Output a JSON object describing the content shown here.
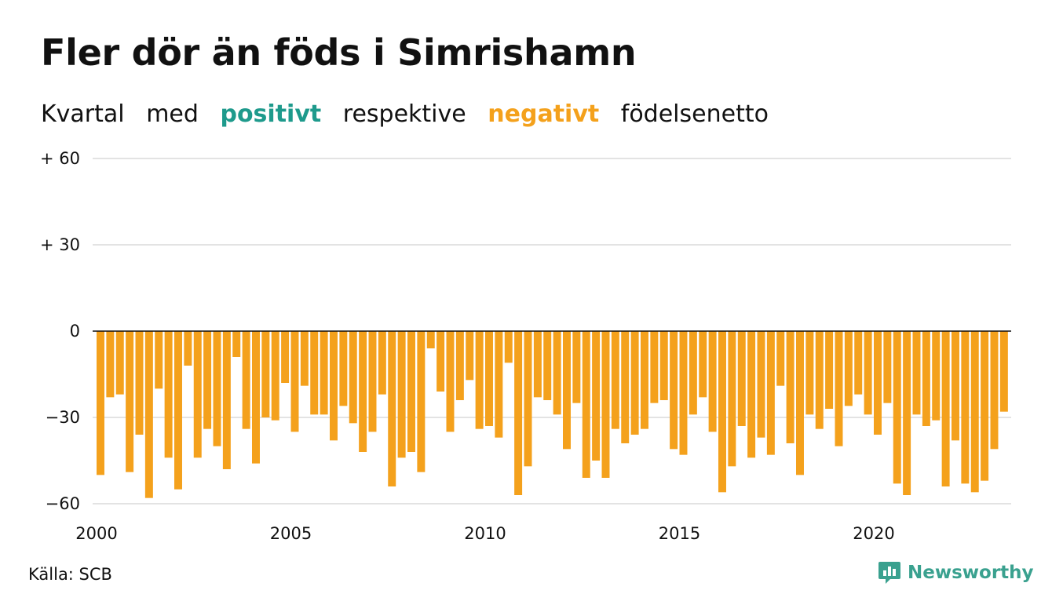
{
  "title": "Fler dör än föds i Simrishamn",
  "subtitle": {
    "w1": "Kvartal",
    "w2": "med",
    "positive": "positivt",
    "w3": "respektive",
    "negative": "negativt",
    "w4": "födelsenetto"
  },
  "source": "Källa: SCB",
  "logo": {
    "text": "Newsworthy",
    "icon": "chat-bar-chart-icon"
  },
  "colors": {
    "positive": "#1e9a8c",
    "negative": "#f4a11c",
    "grid": "#e3e3e3",
    "zero": "#111111"
  },
  "chart_data": {
    "type": "bar",
    "x_start": "2000 Q1",
    "frequency": "quarterly",
    "ylim": [
      -60,
      60
    ],
    "yticks": [
      60,
      30,
      0,
      -30,
      -60
    ],
    "ytick_labels": [
      "+ 60",
      "+ 30",
      "0",
      "−30",
      "−60"
    ],
    "xticks": [
      2000,
      2005,
      2010,
      2015,
      2020
    ],
    "grid": true,
    "values": [
      -50,
      -23,
      -22,
      -49,
      -36,
      -58,
      -20,
      -44,
      -55,
      -12,
      -44,
      -34,
      -40,
      -48,
      -9,
      -34,
      -46,
      -30,
      -31,
      -18,
      -35,
      -19,
      -29,
      -29,
      -38,
      -26,
      -32,
      -42,
      -35,
      -22,
      -54,
      -44,
      -42,
      -49,
      -6,
      -21,
      -35,
      -24,
      -17,
      -34,
      -33,
      -37,
      -11,
      -57,
      -47,
      -23,
      -24,
      -29,
      -41,
      -25,
      -51,
      -45,
      -51,
      -34,
      -39,
      -36,
      -34,
      -25,
      -24,
      -41,
      -43,
      -29,
      -23,
      -35,
      -56,
      -47,
      -33,
      -44,
      -37,
      -43,
      -19,
      -39,
      -50,
      -29,
      -34,
      -27,
      -40,
      -26,
      -22,
      -29,
      -36,
      -25,
      -53,
      -57,
      -29,
      -33,
      -31,
      -54,
      -38,
      -53,
      -56,
      -52,
      -41,
      -28
    ]
  }
}
